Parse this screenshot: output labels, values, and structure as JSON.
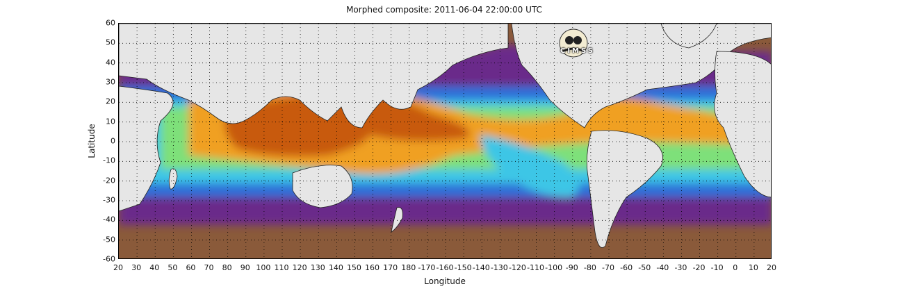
{
  "title": "Morphed composite: 2011-06-04 22:00:00 UTC",
  "xlabel": "Longitude",
  "ylabel": "Latitude",
  "x_ticks": [
    "20",
    "30",
    "40",
    "50",
    "60",
    "70",
    "80",
    "90",
    "100",
    "110",
    "120",
    "130",
    "140",
    "150",
    "160",
    "170",
    "180",
    "-170",
    "-160",
    "-150",
    "-140",
    "-130",
    "-120",
    "-110",
    "-100",
    "-90",
    "-80",
    "-70",
    "-60",
    "-50",
    "-40",
    "-30",
    "-20",
    "-10",
    "0",
    "10",
    "20"
  ],
  "y_ticks": [
    "60",
    "50",
    "40",
    "30",
    "20",
    "10",
    "0",
    "-10",
    "-20",
    "-30",
    "-40",
    "-50",
    "-60"
  ],
  "logo_text": "CIMSS",
  "colors": {
    "land": "#e6e6e6",
    "dry": "#8a5a3a",
    "low": "#6a2a8a",
    "mid_low": "#2f6fd8",
    "mid": "#3ec6e6",
    "mid_high": "#7ee07a",
    "high": "#f0a020",
    "max": "#c85a10"
  }
}
